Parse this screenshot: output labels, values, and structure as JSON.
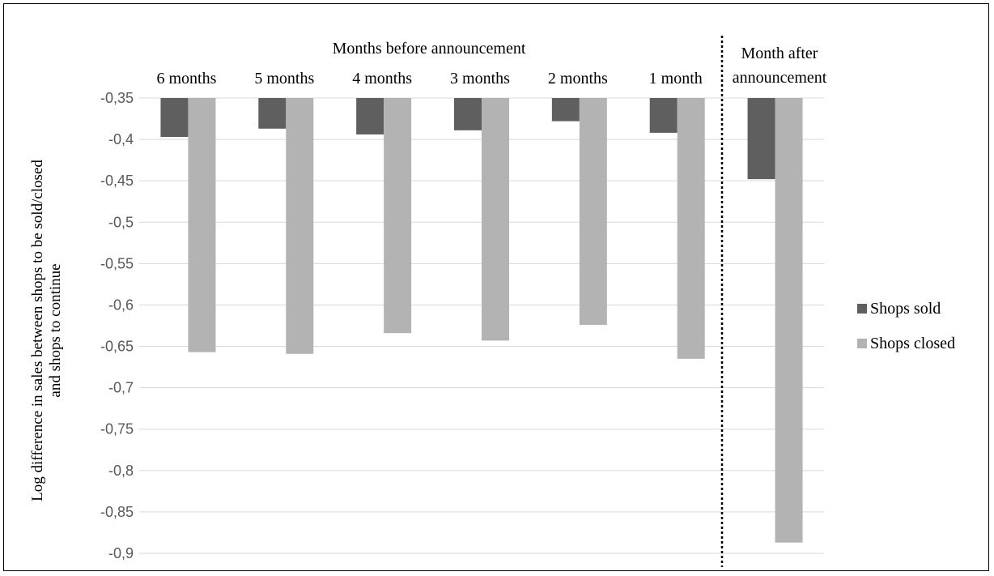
{
  "chart_data": {
    "type": "bar",
    "title": "",
    "group_labels": {
      "before": "Months before announcement",
      "after_line1": "Month after",
      "after_line2": "announcement"
    },
    "categories": [
      "6 months",
      "5 months",
      "4 months",
      "3 months",
      "2 months",
      "1 month",
      ""
    ],
    "series": [
      {
        "name": "Shops sold",
        "color": "#5f5f5f",
        "values": [
          -0.397,
          -0.387,
          -0.394,
          -0.389,
          -0.378,
          -0.392,
          -0.448
        ]
      },
      {
        "name": "Shops closed",
        "color": "#b3b3b3",
        "values": [
          -0.657,
          -0.659,
          -0.634,
          -0.643,
          -0.624,
          -0.665,
          -0.887
        ]
      }
    ],
    "ylabel_line1": "Log difference in sales between shops to be sold/closed",
    "ylabel_line2": "and shops to continue",
    "xlabel": "",
    "ylim": [
      -0.9,
      -0.35
    ],
    "yticks": [
      -0.35,
      -0.4,
      -0.45,
      -0.5,
      -0.55,
      -0.6,
      -0.65,
      -0.7,
      -0.75,
      -0.8,
      -0.85,
      -0.9
    ],
    "ytick_labels": [
      "-0,35",
      "-0,4",
      "-0,45",
      "-0,5",
      "-0,55",
      "-0,6",
      "-0,65",
      "-0,7",
      "-0,75",
      "-0,8",
      "-0,85",
      "-0,9"
    ],
    "grid": true,
    "legend_position": "right",
    "divider": "dotted line between '1 month' and 'Month after announcement'"
  }
}
